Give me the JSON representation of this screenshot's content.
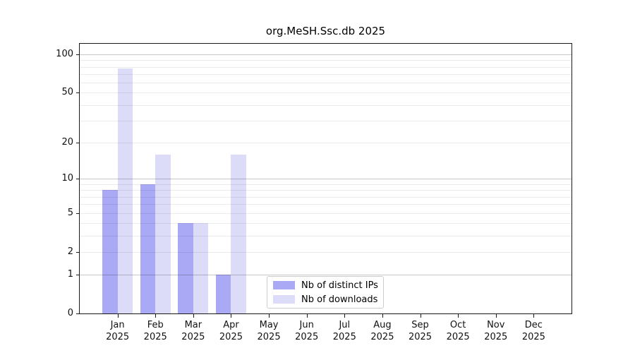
{
  "figure": {
    "background": "#ffffff"
  },
  "chart_data": {
    "type": "bar",
    "title": "org.MeSH.Ssc.db 2025",
    "year": "2025",
    "categories": [
      "Jan",
      "Feb",
      "Mar",
      "Apr",
      "May",
      "Jun",
      "Jul",
      "Aug",
      "Sep",
      "Oct",
      "Nov",
      "Dec"
    ],
    "series": [
      {
        "name": "Nb of distinct IPs",
        "color": "#a9a9f5",
        "values": [
          8,
          9,
          4,
          1,
          0,
          0,
          0,
          0,
          0,
          0,
          0,
          0
        ]
      },
      {
        "name": "Nb of downloads",
        "color": "#dcdcf8",
        "values": [
          78,
          16,
          4,
          16,
          0,
          0,
          0,
          0,
          0,
          0,
          0,
          0
        ]
      }
    ],
    "yscale": "log1p",
    "ylim": [
      0,
      120
    ],
    "yticks": [
      0,
      1,
      2,
      5,
      10,
      20,
      50,
      100
    ],
    "grid": {
      "major": [
        1,
        10,
        100
      ],
      "minor": [
        2,
        3,
        4,
        5,
        6,
        7,
        8,
        9,
        20,
        30,
        40,
        50,
        60,
        70,
        80,
        90
      ]
    },
    "legend": {
      "position": "lower center"
    },
    "xlabel": "",
    "ylabel": ""
  }
}
